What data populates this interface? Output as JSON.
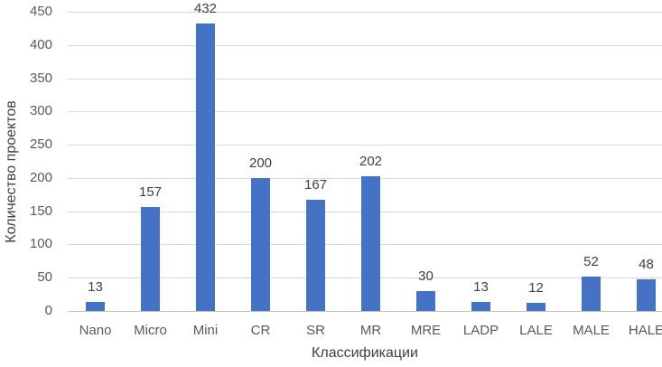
{
  "chart_data": {
    "type": "bar",
    "title": "",
    "xlabel": "Классификации",
    "ylabel": "Количество проектов",
    "categories": [
      "Nano",
      "Micro",
      "Mini",
      "CR",
      "SR",
      "MR",
      "MRE",
      "LADP",
      "LALE",
      "MALE",
      "HALE"
    ],
    "values": [
      13,
      157,
      432,
      200,
      167,
      202,
      30,
      13,
      12,
      52,
      48
    ],
    "data_labels_shown": true,
    "ylim": [
      0,
      450
    ],
    "ytick_step": 50,
    "yticks": [
      0,
      50,
      100,
      150,
      200,
      250,
      300,
      350,
      400,
      450
    ],
    "grid": "horizontal",
    "legend": "none",
    "bar_color": "#4472c4",
    "gridline_color": "#d9d9d9",
    "axis_line_color": "#bfbfbf",
    "tick_label_color": "#595959",
    "data_label_color": "#404040"
  }
}
